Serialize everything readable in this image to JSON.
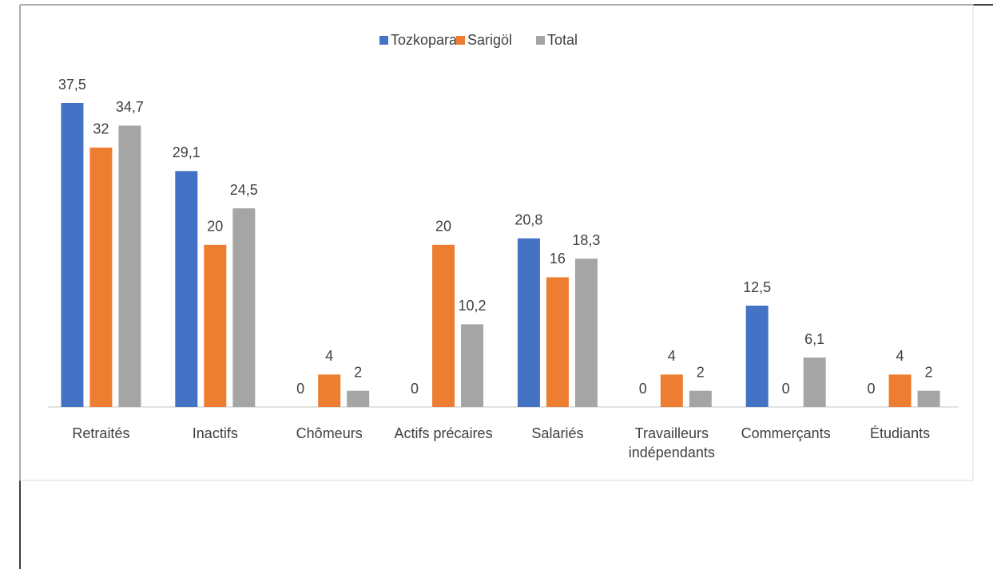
{
  "chart_data": {
    "type": "bar",
    "categories": [
      "Retraités",
      "Inactifs",
      "Chômeurs",
      "Actifs précaires",
      "Salariés",
      "Travailleurs indépendants",
      "Commerçants",
      "Étudiants"
    ],
    "series": [
      {
        "name": "Tozkoparan",
        "color": "#4472c4",
        "values": [
          37.5,
          29.1,
          0,
          0,
          20.8,
          0,
          12.5,
          0
        ],
        "value_labels": [
          "37,5",
          "29,1",
          "0",
          "0",
          "20,8",
          "0",
          "12,5",
          "0"
        ]
      },
      {
        "name": "Sarigöl",
        "color": "#ed7d31",
        "values": [
          32,
          20,
          4,
          20,
          16,
          4,
          0,
          4
        ],
        "value_labels": [
          "32",
          "20",
          "4",
          "20",
          "16",
          "4",
          "0",
          "4"
        ]
      },
      {
        "name": "Total",
        "color": "#a5a5a5",
        "values": [
          34.7,
          24.5,
          2,
          10.2,
          18.3,
          2,
          6.1,
          2
        ],
        "value_labels": [
          "34,7",
          "24,5",
          "2",
          "10,2",
          "18,3",
          "2",
          "6,1",
          "2"
        ]
      }
    ],
    "legend": "top"
  }
}
